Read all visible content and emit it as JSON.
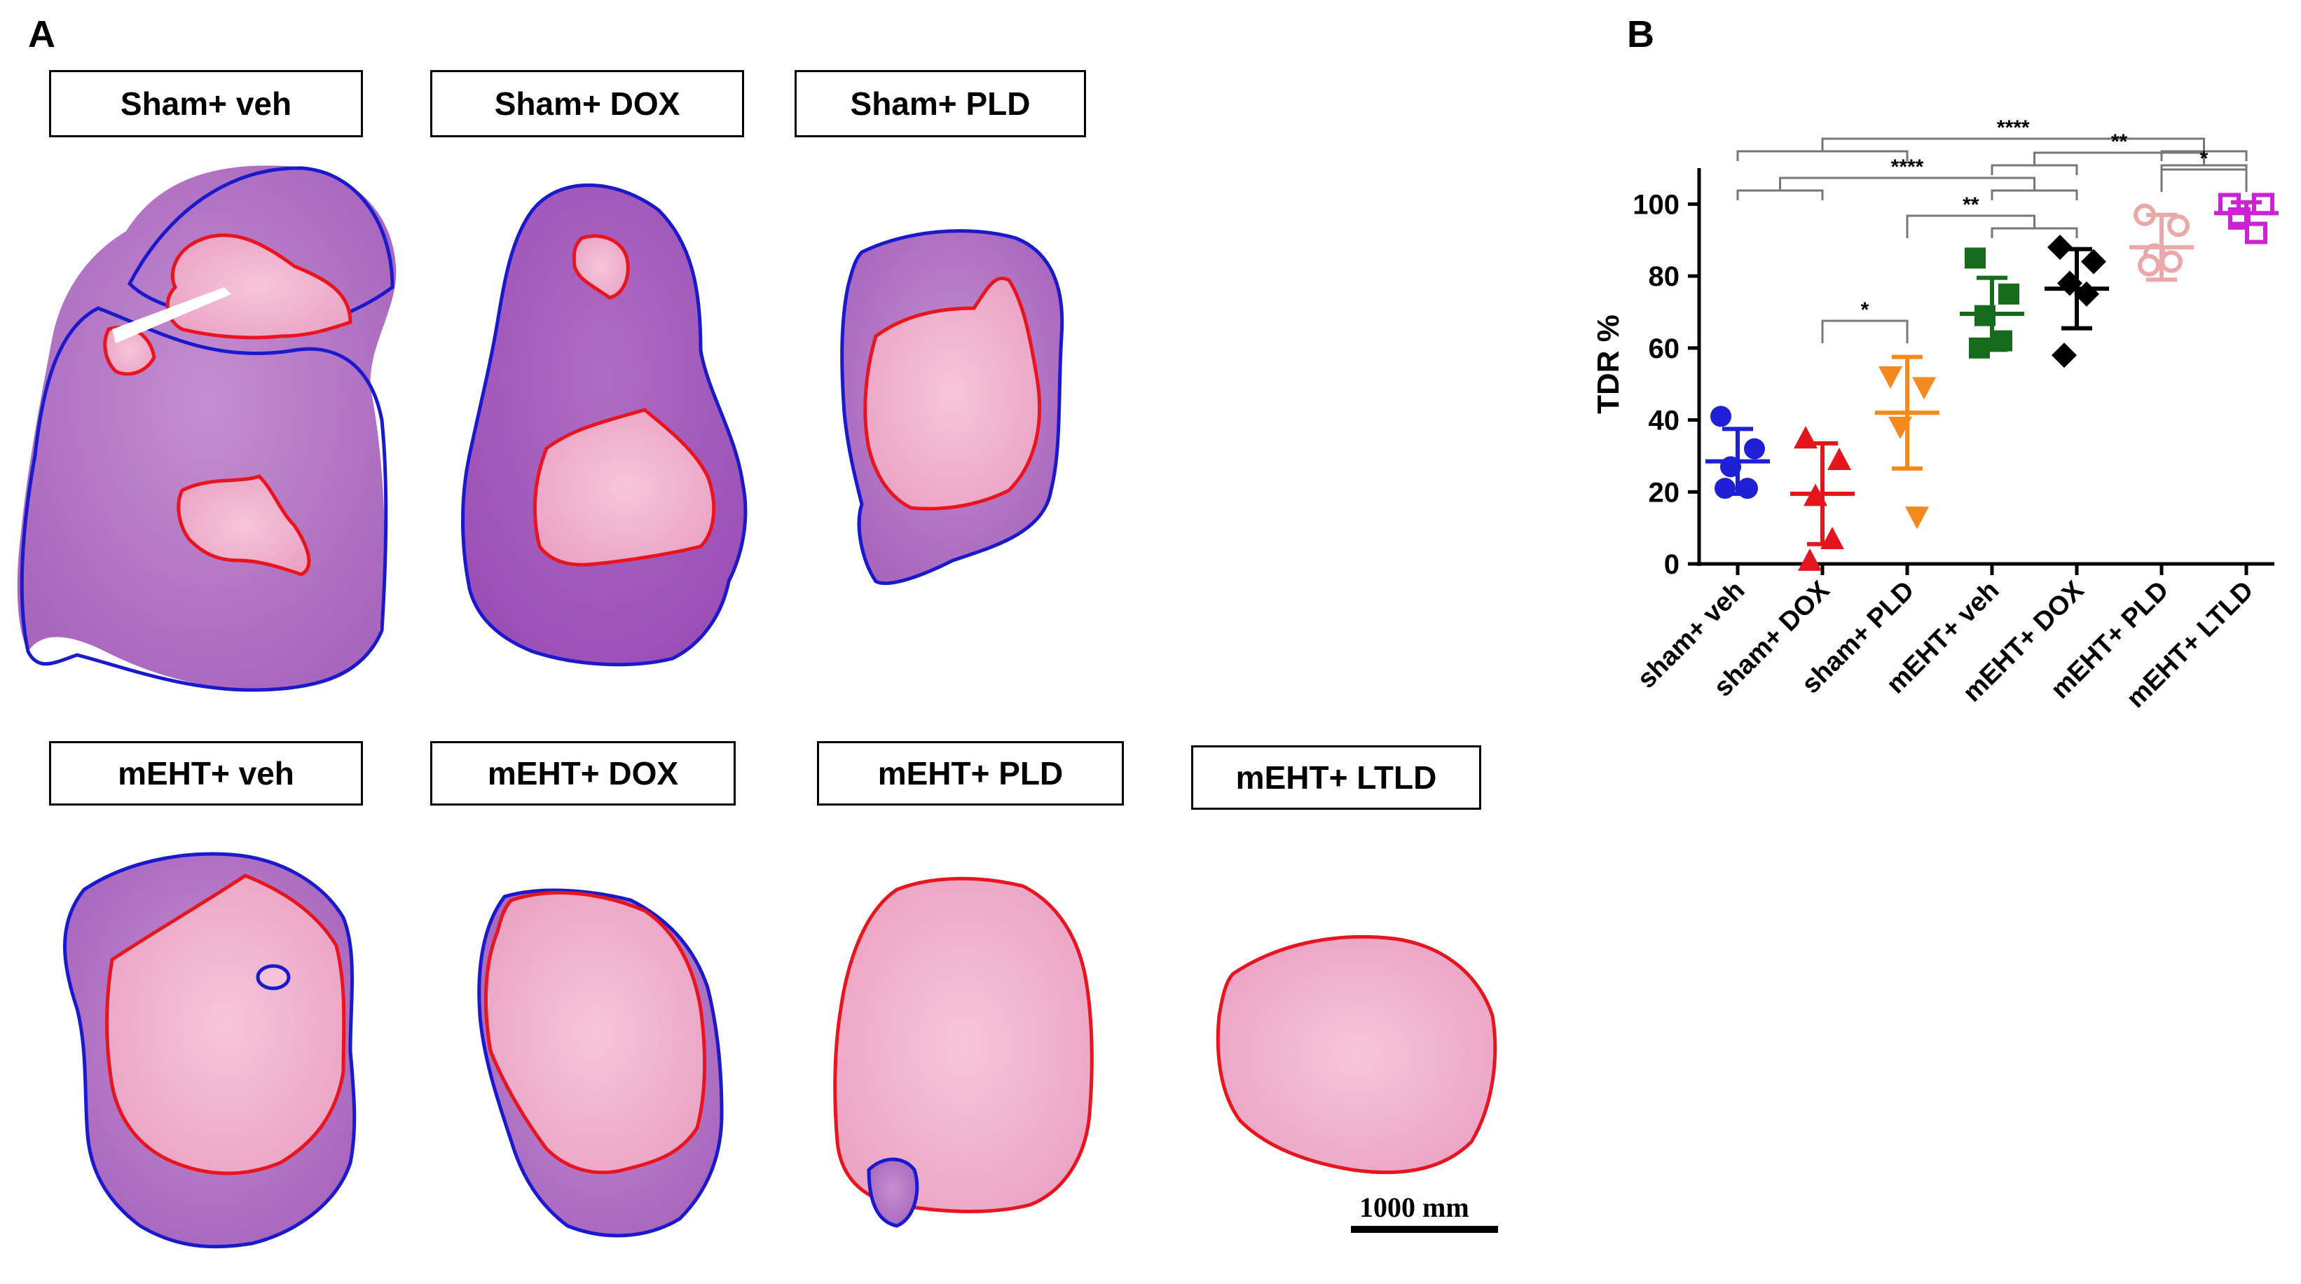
{
  "figure": {
    "panel_a_letter": "A",
    "panel_b_letter": "B",
    "scale_bar_label": "1000 mm",
    "sections": [
      {
        "label": "Sham+ veh"
      },
      {
        "label": "Sham+ DOX"
      },
      {
        "label": "Sham+ PLD"
      },
      {
        "label": "mEHT+ veh"
      },
      {
        "label": "mEHT+ DOX"
      },
      {
        "label": "mEHT+ PLD"
      },
      {
        "label": "mEHT+ LTLD"
      }
    ],
    "colors": {
      "tissue_purple": "#b57ac6",
      "tissue_pink": "#f1b6cf",
      "outline_blue": "#1a1acc",
      "outline_red": "#e8141e"
    }
  },
  "chart_data": {
    "type": "scatter",
    "ylabel": "TDR %",
    "ylim": [
      0,
      110
    ],
    "yticks": [
      0,
      20,
      40,
      60,
      80,
      100
    ],
    "categories": [
      "sham+ veh",
      "sham+ DOX",
      "sham+ PLD",
      "mEHT+ veh",
      "mEHT+ DOX",
      "mEHT+ PLD",
      "mEHT+ LTLD"
    ],
    "series": [
      {
        "name": "sham+ veh",
        "color": "#1f1fd6",
        "marker": "circle",
        "mean": 28.5,
        "sd": 9,
        "points": [
          41,
          32,
          27,
          21,
          21
        ]
      },
      {
        "name": "sham+ DOX",
        "color": "#e4151c",
        "marker": "triangle-up",
        "mean": 19.5,
        "sd": 14,
        "points": [
          35,
          29,
          19,
          7,
          1
        ]
      },
      {
        "name": "sham+ PLD",
        "color": "#f5891e",
        "marker": "triangle-down",
        "mean": 42,
        "sd": 15.5,
        "points": [
          52,
          49,
          38,
          13
        ]
      },
      {
        "name": "mEHT+ veh",
        "color": "#176b1c",
        "marker": "square",
        "mean": 69.5,
        "sd": 10,
        "points": [
          85,
          75,
          69,
          62,
          60
        ]
      },
      {
        "name": "mEHT+ DOX",
        "color": "#000000",
        "marker": "diamond",
        "mean": 76.5,
        "sd": 11,
        "points": [
          88,
          84,
          78,
          75,
          58
        ]
      },
      {
        "name": "mEHT+ PLD",
        "color": "#eaa8a8",
        "marker": "circle-open",
        "mean": 88,
        "sd": 9,
        "points": [
          97,
          94,
          86,
          84,
          83
        ]
      },
      {
        "name": "mEHT+ LTLD",
        "color": "#cc22d4",
        "marker": "square-open",
        "mean": 97.5,
        "sd": 3,
        "points": [
          100,
          100,
          96,
          92
        ]
      }
    ],
    "significance": [
      {
        "label": "****",
        "from_groups": [
          "sham+ veh",
          "sham+ DOX",
          "sham+ PLD"
        ],
        "to_groups": [
          "mEHT+ PLD",
          "mEHT+ LTLD"
        ],
        "level": 1
      },
      {
        "label": "**",
        "from_groups": [
          "mEHT+ veh",
          "mEHT+ DOX"
        ],
        "to_groups": [
          "mEHT+ PLD",
          "mEHT+ LTLD"
        ],
        "level": 2
      },
      {
        "label": "*",
        "from_groups": [
          "mEHT+ PLD"
        ],
        "to_groups": [
          "mEHT+ LTLD"
        ],
        "level": 3
      },
      {
        "label": "****",
        "from_groups": [
          "sham+ veh",
          "sham+ DOX"
        ],
        "to_groups": [
          "mEHT+ veh",
          "mEHT+ DOX"
        ],
        "level": 4
      },
      {
        "label": "**",
        "from_groups": [
          "sham+ PLD"
        ],
        "to_groups": [
          "mEHT+ veh",
          "mEHT+ DOX"
        ],
        "level": 5
      },
      {
        "label": "*",
        "from_groups": [
          "sham+ DOX"
        ],
        "to_groups": [
          "sham+ PLD"
        ],
        "level": 6
      }
    ]
  }
}
